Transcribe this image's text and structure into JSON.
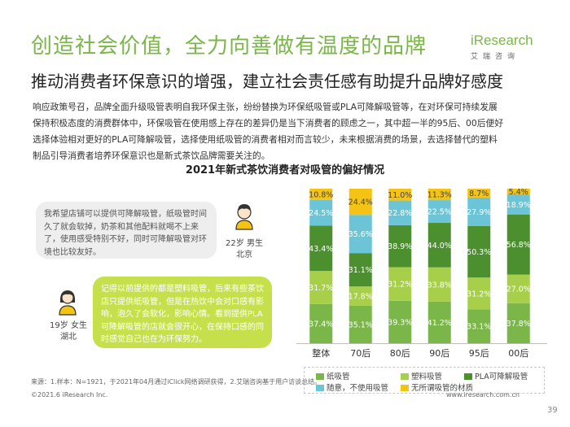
{
  "header": {
    "title": "创造社会价值，全力向善做有温度的品牌",
    "subtitle": "推动消费者环保意识的增强，建立社会责任感有助提升品牌好感度",
    "logo_text": "iResearch",
    "logo_cn": "艾瑞咨询"
  },
  "intro": {
    "lines": [
      "响应政策号召，品牌全面升级吸管表明自我环保主张，纷纷替换为环保纸吸管或PLA可降解吸管等，在对环保可持续发展",
      "保持积极态度的消费群体中，环保吸管在使用感上存在的差异仍是当下消费者的顾虑之一，其中超一半的95后、00后便好",
      "选择体验相对更好的PLA可降解吸管，选择使用纸吸管的消费者相对而言较少，未来根据消费的场景，去选择替代的塑料",
      "制品引导消费者培养环保意识也是新式茶饮品牌需要关注的。"
    ]
  },
  "quotes": {
    "q1": {
      "text": "我希望店铺可以提供可降解吸管，纸吸管时间久了就会软掉，奶茶和其他配料就喝不上来了，使用感受特别不好，同时可降解吸管对环境也比较友好。",
      "person_line1": "22岁 男生",
      "person_line2": "北京"
    },
    "q2": {
      "text": "记得以前提供的都是塑料吸管，后来有些茶饮店只提供纸吸管，但是在热饮中会对口感有影响，泡久了会软化，影响心情。看到提供PLA可降解吸管的店就会很开心，在保持口感的同时感觉自己也在为环保努力。",
      "person_line1": "19岁 女生",
      "person_line2": "湖北"
    }
  },
  "chart_data": {
    "type": "bar",
    "stacked": true,
    "percent": true,
    "title": "2021年新式茶饮消费者对吸管的偏好情况",
    "categories": [
      "整体",
      "70后",
      "80后",
      "90后",
      "95后",
      "00后"
    ],
    "series": [
      {
        "name": "纸吸管",
        "color": "#7ab648",
        "values": [
          37.4,
          35.1,
          39.3,
          41.2,
          33.1,
          37.8
        ]
      },
      {
        "name": "塑料吸管",
        "color": "#a7cf4a",
        "values": [
          31.7,
          17.8,
          31.2,
          33.8,
          31.2,
          27.0
        ]
      },
      {
        "name": "PLA可降解吸管",
        "color": "#4c8f2e",
        "values": [
          43.4,
          31.1,
          38.9,
          44.0,
          50.3,
          56.8
        ]
      },
      {
        "name": "随意，不使用吸管",
        "color": "#6cc5d6",
        "values": [
          24.5,
          35.6,
          22.8,
          22.5,
          27.9,
          18.9
        ]
      },
      {
        "name": "无所谓吸管的材质",
        "color": "#f4c313",
        "values": [
          10.8,
          24.4,
          11.0,
          11.3,
          8.7,
          5.4
        ]
      }
    ],
    "legend_placement": "bottom"
  },
  "footer": {
    "source": "来源：1.样本：N=1921，于2021年04月通过iClick网络调研获得，2.艾瑞咨询基于用户访谈总结。",
    "copyright": "©2021.6 iResearch Inc.",
    "url": "www.iresearch.com.cn",
    "page": "39"
  }
}
